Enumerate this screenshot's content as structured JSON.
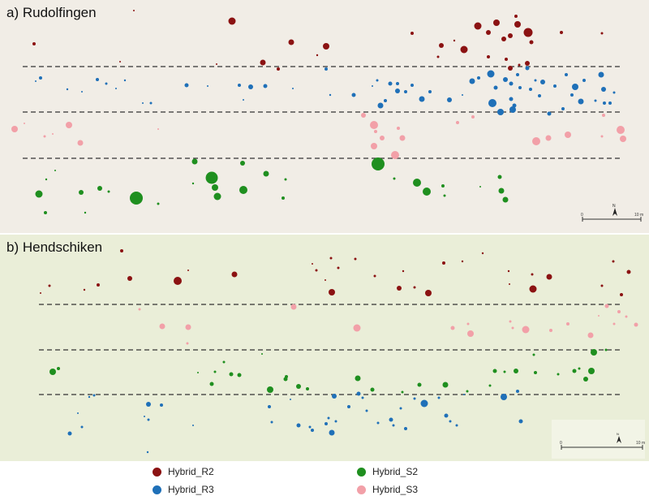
{
  "panels": [
    {
      "id": "a",
      "title": "a) Rudolfingen",
      "scale": {
        "start": "0",
        "end": "10 m"
      },
      "north": "N"
    },
    {
      "id": "b",
      "title": "b) Hendschiken",
      "scale": {
        "start": "0",
        "end": "10 m"
      },
      "north": "N"
    }
  ],
  "legend": [
    {
      "label": "Hybrid_R2",
      "color": "#8b1212"
    },
    {
      "label": "Hybrid_R3",
      "color": "#1f70b8"
    },
    {
      "label": "Hybrid_S2",
      "color": "#1f8f1f"
    },
    {
      "label": "Hybrid_S3",
      "color": "#f2a0a8"
    }
  ],
  "colors": {
    "R2": "#8b1212",
    "R3": "#1f70b8",
    "S2": "#1f8f1f",
    "S3": "#f2a0a8"
  }
}
